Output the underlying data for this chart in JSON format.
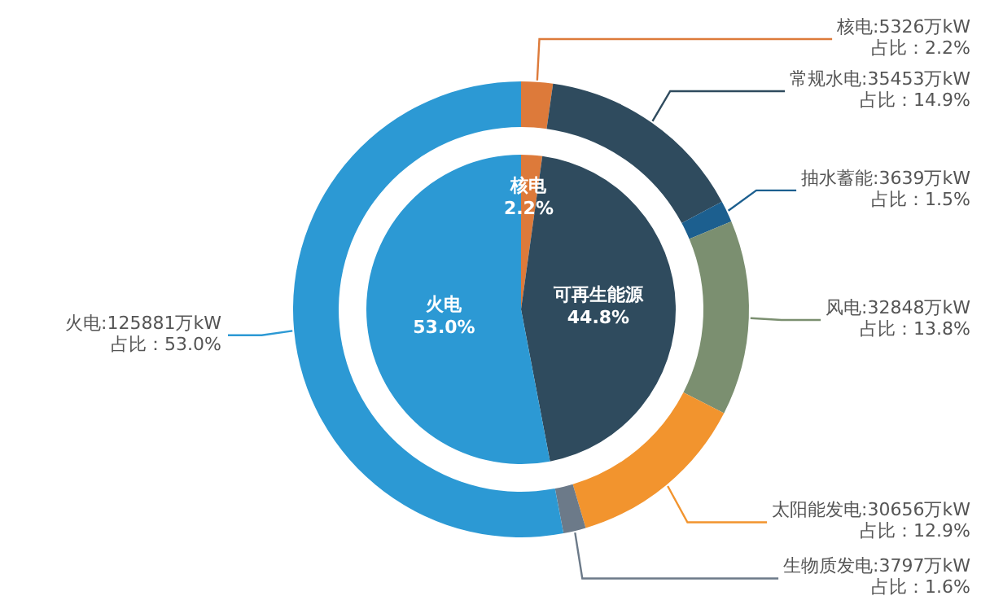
{
  "chart_data": [
    {
      "type": "pie",
      "categories": [
        "核电",
        "可再生能源",
        "火电"
      ],
      "values": [
        2.2,
        44.8,
        53.0
      ],
      "colors": [
        "#dd7a3a",
        "#2f4b5e",
        "#2c99d4"
      ],
      "value_labels": [
        "2.2%",
        "44.8%",
        "53.0%"
      ]
    },
    {
      "type": "donut",
      "categories": [
        "核电",
        "常规水电",
        "抽水蓄能",
        "风电",
        "太阳能发电",
        "生物质发电",
        "火电"
      ],
      "values": [
        5326,
        35453,
        3639,
        32848,
        30656,
        3797,
        125881
      ],
      "colors": [
        "#dd7a3a",
        "#2f4b5e",
        "#1c5f8f",
        "#7b8f70",
        "#f2942e",
        "#6c7a89",
        "#2c99d4"
      ],
      "value_labels": [
        "5326万kW\n占比：2.2%",
        "35453万kW\n占比：14.9%",
        "3639万kW\n占比：1.5%",
        "32848万kW\n占比：13.8%",
        "30656万kW\n占比：12.9%",
        "3797万kW\n占比：1.6%",
        "125881万kW\n占比：53.0%"
      ]
    }
  ]
}
